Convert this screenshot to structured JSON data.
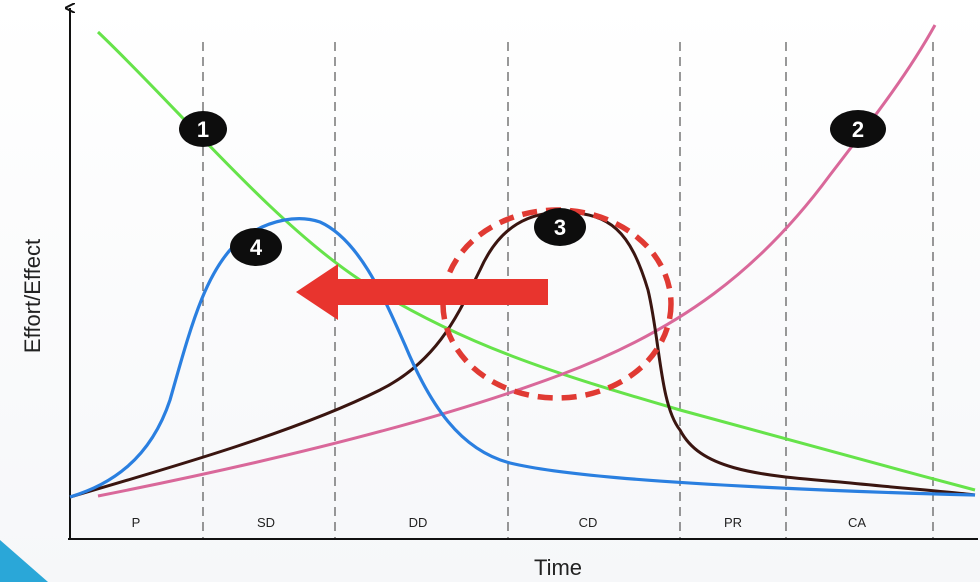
{
  "diagram": {
    "y_axis_title": "Effort/Effect",
    "x_axis_title": "Time",
    "phases": [
      "P",
      "SD",
      "DD",
      "CD",
      "PR",
      "CA"
    ],
    "markers": [
      "1",
      "2",
      "3",
      "4"
    ],
    "colors": {
      "curve_1": "#66e34a",
      "curve_2": "#d9689a",
      "curve_3": "#3a1510",
      "curve_4": "#2a7fe0",
      "arrow": "#e8342e",
      "highlight_circle": "#e03a33",
      "marker_fill": "#0d0d0d",
      "accent_corner": "#2aa7d8"
    }
  }
}
